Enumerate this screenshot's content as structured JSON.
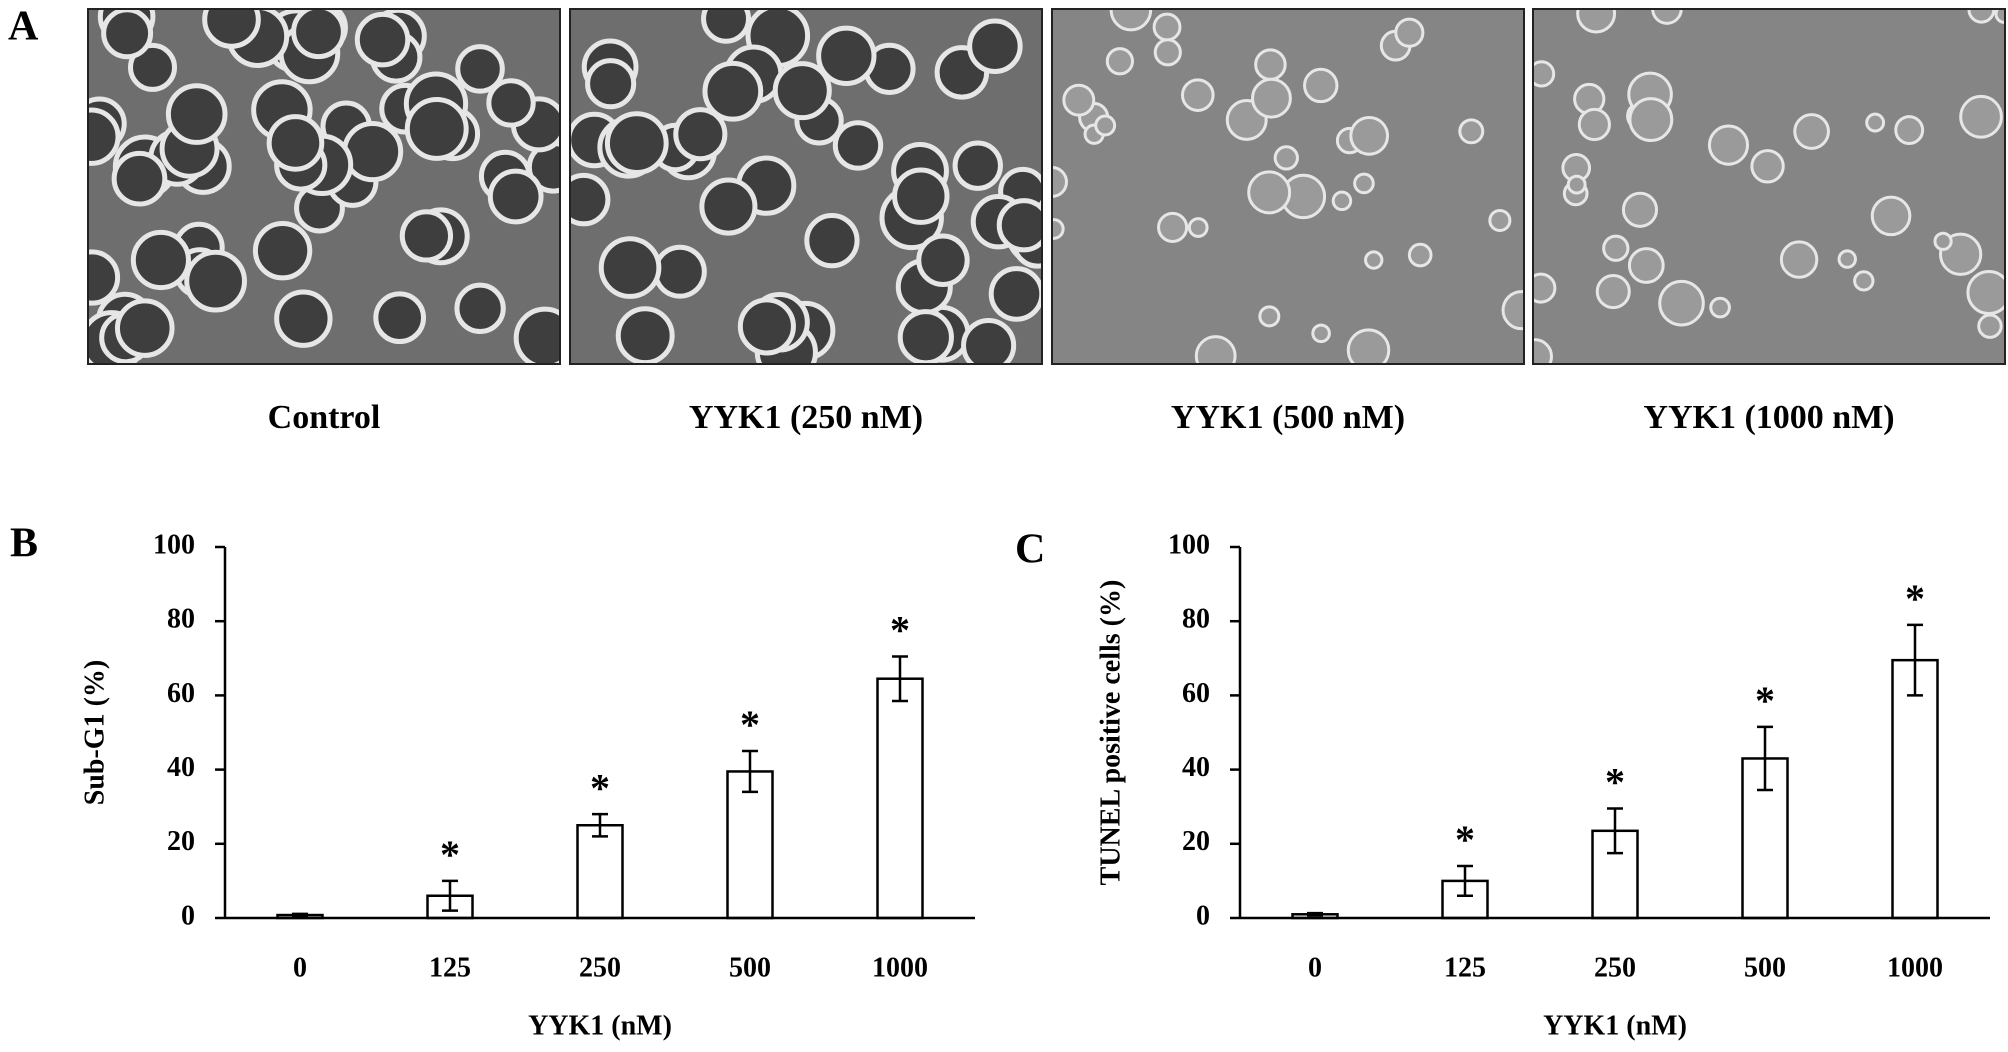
{
  "panels": {
    "a": "A",
    "b": "B",
    "c": "C"
  },
  "images": [
    {
      "caption": "Control"
    },
    {
      "caption": "YYK1 (250 nM)"
    },
    {
      "caption": "YYK1 (500 nM)"
    },
    {
      "caption": "YYK1 (1000 nM)"
    }
  ],
  "chart_data": [
    {
      "type": "bar",
      "categories": [
        "0",
        "125",
        "250",
        "500",
        "1000"
      ],
      "x_label": "YYK1 (nM)",
      "y_label": "Sub-G1 (%)",
      "ylim": [
        0,
        100
      ],
      "yticks": [
        0,
        20,
        40,
        60,
        80,
        100
      ],
      "color": "#ffffff",
      "series": [
        {
          "values": [
            0.8,
            6,
            25,
            39.5,
            64.5
          ],
          "errors": [
            0.3,
            4,
            3,
            5.5,
            6
          ],
          "markers": [
            null,
            "*",
            "*",
            "*",
            "*"
          ]
        }
      ]
    },
    {
      "type": "bar",
      "categories": [
        "0",
        "125",
        "250",
        "500",
        "1000"
      ],
      "x_label": "YYK1 (nM)",
      "y_label": "TUNEL positive cells (%)",
      "ylim": [
        0,
        100
      ],
      "yticks": [
        0,
        20,
        40,
        60,
        80,
        100
      ],
      "color": "#ffffff",
      "series": [
        {
          "values": [
            1,
            10,
            23.5,
            43,
            69.5
          ],
          "errors": [
            0.3,
            4,
            6,
            8.5,
            9.5
          ],
          "markers": [
            null,
            "*",
            "*",
            "*",
            "*"
          ]
        }
      ]
    }
  ]
}
